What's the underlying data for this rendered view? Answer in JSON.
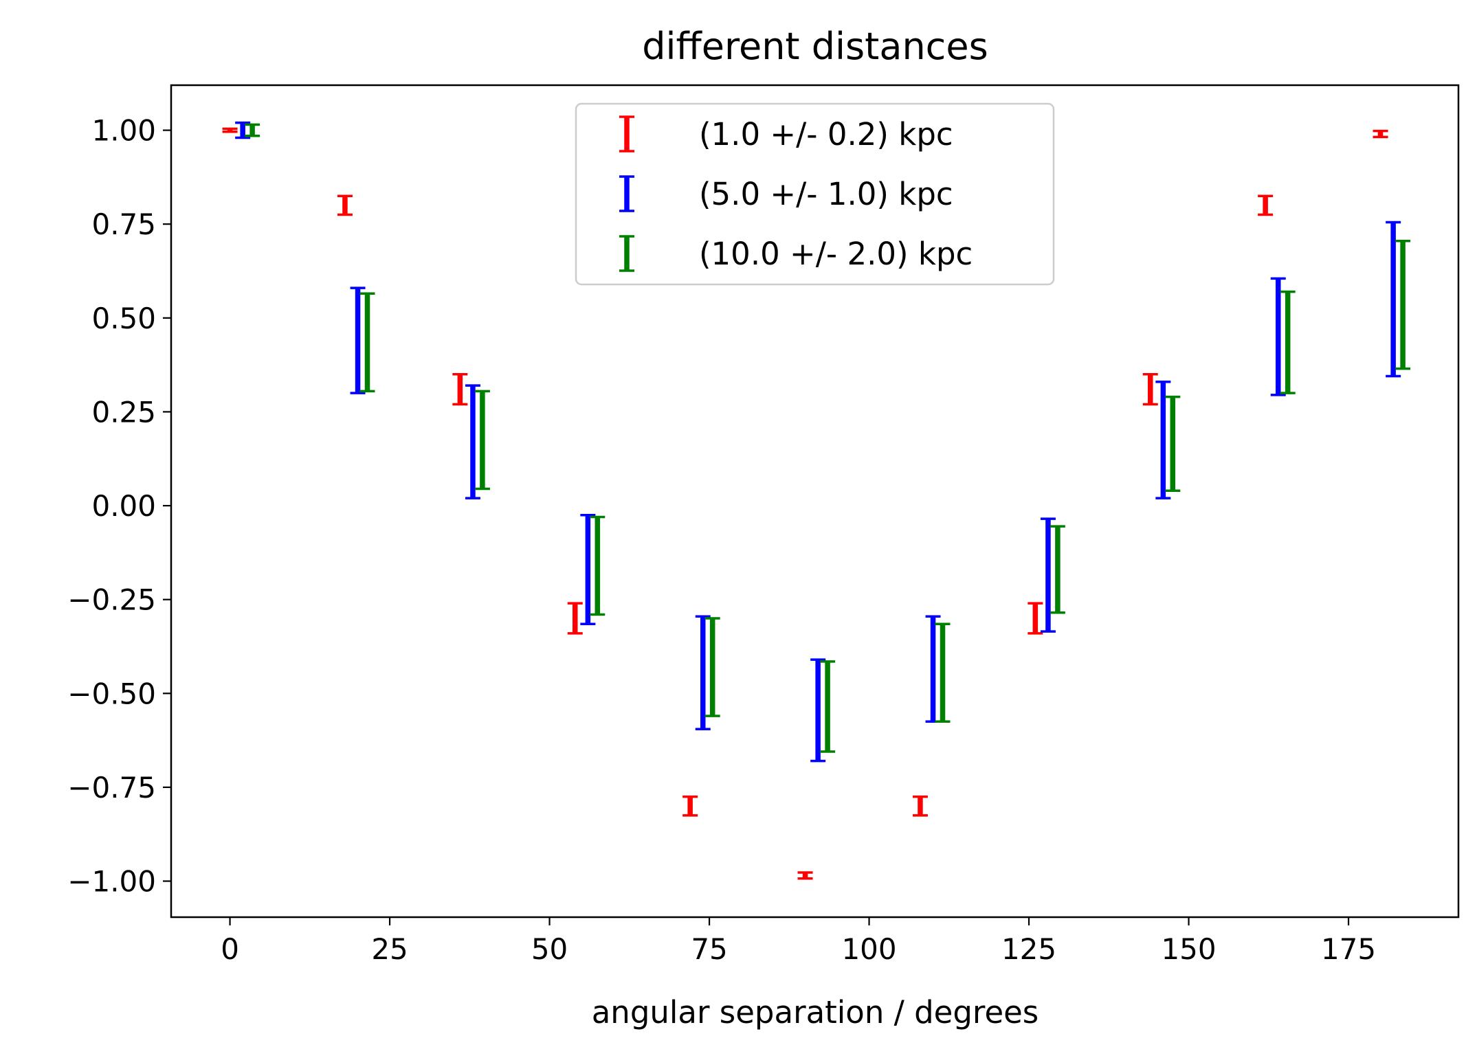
{
  "chart_data": {
    "type": "errorbar",
    "title": "different distances",
    "xlabel": "angular separation / degrees",
    "ylabel": "",
    "xlim": [
      -9.2,
      192.2
    ],
    "ylim": [
      -1.096,
      1.12
    ],
    "xticks": [
      0,
      25,
      50,
      75,
      100,
      125,
      150,
      175
    ],
    "yticks": [
      1.0,
      0.75,
      0.5,
      0.25,
      0.0,
      -0.25,
      -0.5,
      -0.75,
      -1.0
    ],
    "xtick_labels": [
      "0",
      "25",
      "50",
      "75",
      "100",
      "125",
      "150",
      "175"
    ],
    "ytick_labels": [
      "1.00",
      "0.75",
      "0.50",
      "0.25",
      "0.00",
      "−0.25",
      "−0.50",
      "−0.75",
      "−1.00"
    ],
    "grid": false,
    "legend_position": "upper center",
    "series": [
      {
        "name": "(1.0 +/- 0.2) kpc",
        "color": "#ff0000",
        "x": [
          0,
          18,
          36,
          54,
          72,
          90,
          108,
          126,
          144,
          162,
          180
        ],
        "y": [
          1.0,
          0.8,
          0.31,
          -0.3,
          -0.8,
          -0.985,
          -0.8,
          -0.3,
          0.31,
          0.8,
          0.99
        ],
        "yerr": [
          0.004,
          0.025,
          0.04,
          0.04,
          0.025,
          0.008,
          0.025,
          0.04,
          0.04,
          0.025,
          0.008
        ]
      },
      {
        "name": "(5.0 +/- 1.0) kpc",
        "color": "#0000ff",
        "x": [
          2,
          20,
          38,
          56,
          74,
          92,
          110,
          128,
          146,
          164,
          182
        ],
        "y": [
          1.0,
          0.44,
          0.17,
          -0.17,
          -0.445,
          -0.545,
          -0.435,
          -0.185,
          0.175,
          0.45,
          0.55
        ],
        "yerr": [
          0.02,
          0.14,
          0.15,
          0.145,
          0.15,
          0.135,
          0.14,
          0.15,
          0.155,
          0.155,
          0.205
        ]
      },
      {
        "name": "(10.0 +/- 2.0) kpc",
        "color": "#008000",
        "x": [
          3.5,
          21.5,
          39.5,
          57.5,
          75.5,
          93.5,
          111.5,
          129.5,
          147.5,
          165.5,
          183.5
        ],
        "y": [
          1.0,
          0.435,
          0.175,
          -0.16,
          -0.43,
          -0.535,
          -0.445,
          -0.17,
          0.165,
          0.435,
          0.535
        ],
        "yerr": [
          0.015,
          0.13,
          0.13,
          0.13,
          0.13,
          0.12,
          0.13,
          0.115,
          0.125,
          0.135,
          0.17
        ]
      }
    ]
  }
}
